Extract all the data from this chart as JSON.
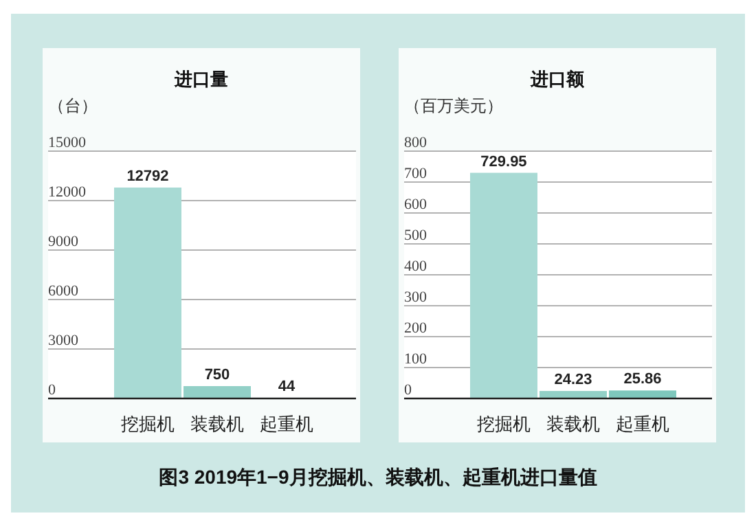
{
  "chart_data": [
    {
      "type": "bar",
      "title": "进口量",
      "ylabel": "（台）",
      "categories": [
        "挖掘机",
        "装载机",
        "起重机"
      ],
      "values": [
        12792,
        750,
        44
      ],
      "colors": [
        "#a8dad4",
        "#92d0c7",
        "#7ec7bc"
      ],
      "ylim": [
        0,
        15000
      ],
      "yticks": [
        0,
        3000,
        6000,
        9000,
        12000,
        15000
      ],
      "grid": "y",
      "data_labels": true
    },
    {
      "type": "bar",
      "title": "进口额",
      "ylabel": "（百万美元）",
      "categories": [
        "挖掘机",
        "装载机",
        "起重机"
      ],
      "values": [
        729.95,
        24.23,
        25.86
      ],
      "colors": [
        "#a8dad4",
        "#92d0c7",
        "#7ec7bc"
      ],
      "ylim": [
        0,
        800
      ],
      "yticks": [
        0,
        100,
        200,
        300,
        400,
        500,
        600,
        700,
        800
      ],
      "grid": "y",
      "data_labels": true,
      "annotations": [
        "图3 2019年1−9月挖掘机、装载机、起重机进口量值"
      ]
    }
  ]
}
